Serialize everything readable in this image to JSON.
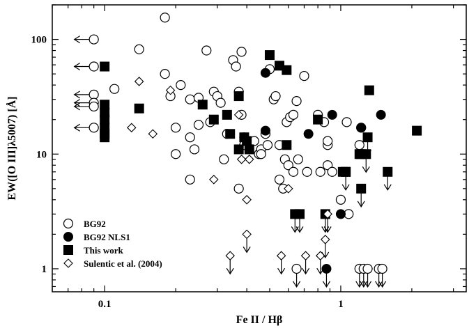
{
  "chart_data": {
    "type": "scatter",
    "xlabel": "Fe II / Hβ",
    "ylabel": "EW([O III]λ5007) [Å]",
    "xscale": "log",
    "yscale": "log",
    "xlim": [
      0.06,
      3.4
    ],
    "ylim": [
      0.63,
      200
    ],
    "x_ticks": [
      {
        "value": 0.1,
        "label": "0.1"
      },
      {
        "value": 1,
        "label": "1"
      }
    ],
    "y_ticks": [
      {
        "value": 1,
        "label": "1"
      },
      {
        "value": 10,
        "label": "10"
      },
      {
        "value": 100,
        "label": "100"
      }
    ],
    "grid": false,
    "legend_position": "bottom-left",
    "series": [
      {
        "name": "BG92",
        "marker": "open-circle",
        "points": [
          [
            0.09,
            100
          ],
          [
            0.09,
            58
          ],
          [
            0.09,
            33
          ],
          [
            0.09,
            28
          ],
          [
            0.09,
            26
          ],
          [
            0.09,
            17
          ],
          [
            0.11,
            37
          ],
          [
            0.14,
            82
          ],
          [
            0.18,
            155
          ],
          [
            0.18,
            50
          ],
          [
            0.19,
            32
          ],
          [
            0.2,
            17
          ],
          [
            0.2,
            10
          ],
          [
            0.21,
            40
          ],
          [
            0.23,
            30
          ],
          [
            0.23,
            14
          ],
          [
            0.23,
            6
          ],
          [
            0.24,
            11
          ],
          [
            0.25,
            31
          ],
          [
            0.25,
            18
          ],
          [
            0.27,
            80
          ],
          [
            0.28,
            19
          ],
          [
            0.29,
            35
          ],
          [
            0.3,
            32
          ],
          [
            0.31,
            28
          ],
          [
            0.32,
            9
          ],
          [
            0.33,
            15
          ],
          [
            0.35,
            66
          ],
          [
            0.36,
            58
          ],
          [
            0.37,
            35
          ],
          [
            0.37,
            5
          ],
          [
            0.38,
            78
          ],
          [
            0.38,
            22
          ],
          [
            0.39,
            12
          ],
          [
            0.39,
            14
          ],
          [
            0.43,
            13
          ],
          [
            0.45,
            10
          ],
          [
            0.46,
            11
          ],
          [
            0.46,
            10
          ],
          [
            0.48,
            15
          ],
          [
            0.49,
            12
          ],
          [
            0.5,
            55
          ],
          [
            0.52,
            30
          ],
          [
            0.53,
            32
          ],
          [
            0.55,
            12
          ],
          [
            0.55,
            6
          ],
          [
            0.57,
            5
          ],
          [
            0.58,
            9
          ],
          [
            0.59,
            19
          ],
          [
            0.6,
            8
          ],
          [
            0.61,
            21
          ],
          [
            0.63,
            22
          ],
          [
            0.63,
            7
          ],
          [
            0.65,
            29
          ],
          [
            0.66,
            9
          ],
          [
            0.7,
            48
          ],
          [
            0.72,
            7
          ],
          [
            0.8,
            22
          ],
          [
            0.82,
            7
          ],
          [
            0.85,
            19
          ],
          [
            0.88,
            12
          ],
          [
            0.88,
            8
          ],
          [
            0.88,
            13
          ],
          [
            0.92,
            7
          ],
          [
            1.0,
            4
          ],
          [
            1.06,
            19
          ],
          [
            1.08,
            3
          ],
          [
            1.2,
            12
          ],
          [
            1.22,
            17
          ]
        ],
        "upper_limits": [
          [
            0.65,
            1.0
          ],
          [
            1.2,
            1.0
          ],
          [
            1.25,
            1.0
          ],
          [
            1.3,
            1.0
          ],
          [
            1.45,
            1.0
          ],
          [
            1.5,
            1.0
          ]
        ],
        "left_limits": [
          [
            0.09,
            100
          ],
          [
            0.09,
            58
          ],
          [
            0.09,
            33
          ],
          [
            0.09,
            28
          ],
          [
            0.09,
            26
          ],
          [
            0.09,
            17
          ]
        ]
      },
      {
        "name": "BG92 NLS1",
        "marker": "filled-circle",
        "points": [
          [
            0.48,
            51
          ],
          [
            0.48,
            16
          ],
          [
            0.73,
            15
          ],
          [
            0.92,
            22
          ],
          [
            1.0,
            3
          ],
          [
            1.22,
            17
          ],
          [
            1.48,
            22
          ]
        ],
        "upper_limits": [
          [
            0.87,
            1.0
          ]
        ]
      },
      {
        "name": "This work",
        "marker": "filled-square",
        "points": [
          [
            0.1,
            58
          ],
          [
            0.1,
            27
          ],
          [
            0.1,
            23
          ],
          [
            0.1,
            20
          ],
          [
            0.1,
            17
          ],
          [
            0.1,
            15
          ],
          [
            0.1,
            14
          ],
          [
            0.14,
            25
          ],
          [
            0.26,
            27
          ],
          [
            0.29,
            20
          ],
          [
            0.33,
            22
          ],
          [
            0.34,
            15
          ],
          [
            0.37,
            32
          ],
          [
            0.37,
            11
          ],
          [
            0.39,
            14
          ],
          [
            0.4,
            13
          ],
          [
            0.41,
            11
          ],
          [
            0.5,
            73
          ],
          [
            0.55,
            59
          ],
          [
            0.59,
            54
          ],
          [
            0.59,
            12
          ],
          [
            0.8,
            20
          ],
          [
            1.02,
            7
          ],
          [
            1.05,
            7
          ],
          [
            1.22,
            10
          ]
        ],
        "upper_limits": [
          [
            0.64,
            3
          ],
          [
            0.67,
            3
          ],
          [
            0.86,
            3
          ],
          [
            1.05,
            7
          ],
          [
            1.22,
            5
          ],
          [
            1.28,
            10
          ],
          [
            1.3,
            14
          ],
          [
            1.58,
            7
          ]
        ],
        "extra_points": [
          [
            1.32,
            36
          ],
          [
            2.1,
            16
          ],
          [
            1.2,
            10
          ]
        ]
      },
      {
        "name": "Sulentic et al. (2004)",
        "marker": "open-diamond",
        "points": [
          [
            0.13,
            17
          ],
          [
            0.14,
            43
          ],
          [
            0.16,
            15
          ],
          [
            0.19,
            36
          ],
          [
            0.29,
            6
          ],
          [
            0.37,
            22
          ],
          [
            0.38,
            9
          ],
          [
            0.4,
            4
          ],
          [
            0.41,
            9
          ],
          [
            0.6,
            5
          ]
        ],
        "upper_limits": [
          [
            0.34,
            1.3
          ],
          [
            0.4,
            2.0
          ],
          [
            0.56,
            1.3
          ],
          [
            0.71,
            1.3
          ],
          [
            0.82,
            1.3
          ],
          [
            0.86,
            1.8
          ],
          [
            0.88,
            3
          ]
        ]
      }
    ]
  }
}
